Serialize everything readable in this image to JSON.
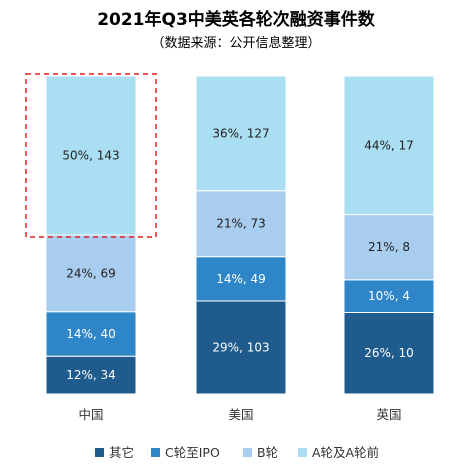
{
  "chart_data": {
    "type": "bar",
    "stacked": true,
    "normalized": true,
    "title": "2021年Q3中美英各轮次融资事件数",
    "subtitle": "（数据来源：公开信息整理）",
    "categories": [
      "中国",
      "美国",
      "英国"
    ],
    "series": [
      {
        "name": "其它",
        "color": "#1f5b8c",
        "counts": [
          34,
          103,
          10
        ],
        "percents": [
          12,
          29,
          26
        ],
        "labels": [
          "12%, 34",
          "29%, 103",
          "26%, 10"
        ]
      },
      {
        "name": "C轮至IPO",
        "color": "#2e86c8",
        "counts": [
          40,
          49,
          4
        ],
        "percents": [
          14,
          14,
          10
        ],
        "labels": [
          "14%, 40",
          "14%, 49",
          "10%, 4"
        ]
      },
      {
        "name": "B轮",
        "color": "#a9cdee",
        "counts": [
          69,
          73,
          8
        ],
        "percents": [
          24,
          21,
          21
        ],
        "labels": [
          "24%, 69",
          "21%, 73",
          "21%, 8"
        ]
      },
      {
        "name": "A轮及A轮前",
        "color": "#aadff3",
        "counts": [
          143,
          127,
          17
        ],
        "percents": [
          50,
          36,
          44
        ],
        "labels": [
          "50%, 143",
          "36%, 127",
          "44%, 17"
        ]
      }
    ],
    "highlight": {
      "category": "中国",
      "series": "A轮及A轮前",
      "style": "dashed",
      "color": "#e02020"
    },
    "legend": "bottom",
    "grid": false
  }
}
